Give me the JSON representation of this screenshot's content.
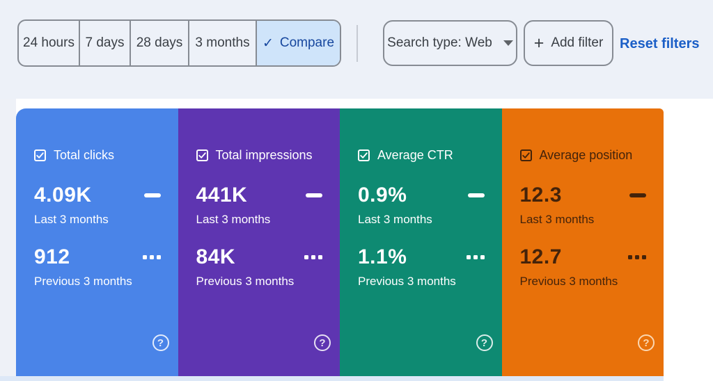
{
  "toolbar": {
    "date_ranges": [
      "24 hours",
      "7 days",
      "28 days",
      "3 months"
    ],
    "compare": {
      "label": "Compare",
      "check": "✓",
      "selected_bg": "#cfe4fa",
      "selected_text": "#17479e"
    },
    "search_type": {
      "label": "Search type: Web"
    },
    "add_filter": {
      "plus": "+",
      "label": "Add filter"
    },
    "reset_filters_label": "Reset filters"
  },
  "cards": [
    {
      "label": "Total clicks",
      "checked": true,
      "current_value": "4.09K",
      "current_period": "Last 3 months",
      "previous_value": "912",
      "previous_period": "Previous 3 months",
      "bg_color": "#4a84e8",
      "text_color": "#ffffff",
      "help_color": "#ffffff"
    },
    {
      "label": "Total impressions",
      "checked": true,
      "current_value": "441K",
      "current_period": "Last 3 months",
      "previous_value": "84K",
      "previous_period": "Previous 3 months",
      "bg_color": "#5e35b1",
      "text_color": "#ffffff",
      "help_color": "#ffffff"
    },
    {
      "label": "Average CTR",
      "checked": true,
      "current_value": "0.9%",
      "current_period": "Last 3 months",
      "previous_value": "1.1%",
      "previous_period": "Previous 3 months",
      "bg_color": "#0e8a72",
      "text_color": "#ffffff",
      "help_color": "#ffffff"
    },
    {
      "label": "Average position",
      "checked": true,
      "current_value": "12.3",
      "current_period": "Last 3 months",
      "previous_value": "12.7",
      "previous_period": "Previous 3 months",
      "bg_color": "#e8710a",
      "text_color": "#44230a",
      "help_color": "#ffe9cf"
    }
  ],
  "colors": {
    "top_band": "#edf1f8",
    "reset_link": "#1b5fc7",
    "button_border": "#868b93",
    "button_text": "#3a3f45"
  }
}
